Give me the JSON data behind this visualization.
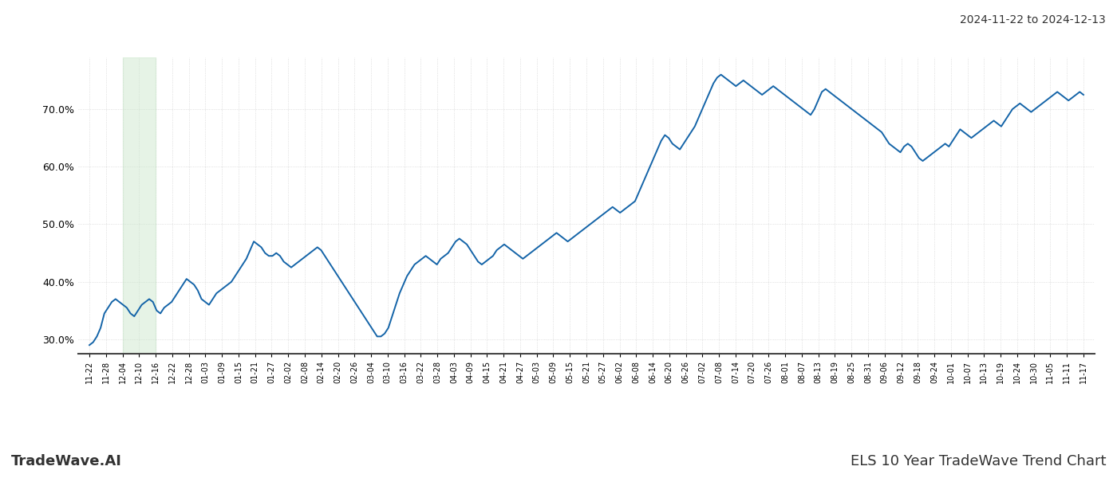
{
  "title_top_right": "2024-11-22 to 2024-12-13",
  "title_bottom_left": "TradeWave.AI",
  "title_bottom_right": "ELS 10 Year TradeWave Trend Chart",
  "line_color": "#1464a8",
  "line_width": 1.4,
  "highlight_color": "#c8e6c9",
  "highlight_alpha": 0.45,
  "background_color": "#ffffff",
  "grid_color": "#cccccc",
  "ylim": [
    27.5,
    79
  ],
  "yticks": [
    30.0,
    40.0,
    50.0,
    60.0,
    70.0
  ],
  "x_labels": [
    "11-22",
    "11-28",
    "12-04",
    "12-10",
    "12-16",
    "12-22",
    "12-28",
    "01-03",
    "01-09",
    "01-15",
    "01-21",
    "01-27",
    "02-02",
    "02-08",
    "02-14",
    "02-20",
    "02-26",
    "03-04",
    "03-10",
    "03-16",
    "03-22",
    "03-28",
    "04-03",
    "04-09",
    "04-15",
    "04-21",
    "04-27",
    "05-03",
    "05-09",
    "05-15",
    "05-21",
    "05-27",
    "06-02",
    "06-08",
    "06-14",
    "06-20",
    "06-26",
    "07-02",
    "07-08",
    "07-14",
    "07-20",
    "07-26",
    "08-01",
    "08-07",
    "08-13",
    "08-19",
    "08-25",
    "08-31",
    "09-06",
    "09-12",
    "09-18",
    "09-24",
    "10-01",
    "10-07",
    "10-13",
    "10-19",
    "10-24",
    "10-30",
    "11-05",
    "11-11",
    "11-17"
  ],
  "highlight_start_label": "12-04",
  "highlight_end_label": "12-16",
  "values": [
    29.0,
    29.5,
    30.5,
    32.0,
    34.5,
    35.5,
    36.5,
    37.0,
    36.5,
    36.0,
    35.5,
    34.5,
    34.0,
    35.0,
    36.0,
    36.5,
    37.0,
    36.5,
    35.0,
    34.5,
    35.5,
    36.0,
    36.5,
    37.5,
    38.5,
    39.5,
    40.5,
    40.0,
    39.5,
    38.5,
    37.0,
    36.5,
    36.0,
    37.0,
    38.0,
    38.5,
    39.0,
    39.5,
    40.0,
    41.0,
    42.0,
    43.0,
    44.0,
    45.5,
    47.0,
    46.5,
    46.0,
    45.0,
    44.5,
    44.5,
    45.0,
    44.5,
    43.5,
    43.0,
    42.5,
    43.0,
    43.5,
    44.0,
    44.5,
    45.0,
    45.5,
    46.0,
    45.5,
    44.5,
    43.5,
    42.5,
    41.5,
    40.5,
    39.5,
    38.5,
    37.5,
    36.5,
    35.5,
    34.5,
    33.5,
    32.5,
    31.5,
    30.5,
    30.5,
    31.0,
    32.0,
    34.0,
    36.0,
    38.0,
    39.5,
    41.0,
    42.0,
    43.0,
    43.5,
    44.0,
    44.5,
    44.0,
    43.5,
    43.0,
    44.0,
    44.5,
    45.0,
    46.0,
    47.0,
    47.5,
    47.0,
    46.5,
    45.5,
    44.5,
    43.5,
    43.0,
    43.5,
    44.0,
    44.5,
    45.5,
    46.0,
    46.5,
    46.0,
    45.5,
    45.0,
    44.5,
    44.0,
    44.5,
    45.0,
    45.5,
    46.0,
    46.5,
    47.0,
    47.5,
    48.0,
    48.5,
    48.0,
    47.5,
    47.0,
    47.5,
    48.0,
    48.5,
    49.0,
    49.5,
    50.0,
    50.5,
    51.0,
    51.5,
    52.0,
    52.5,
    53.0,
    52.5,
    52.0,
    52.5,
    53.0,
    53.5,
    54.0,
    55.5,
    57.0,
    58.5,
    60.0,
    61.5,
    63.0,
    64.5,
    65.5,
    65.0,
    64.0,
    63.5,
    63.0,
    64.0,
    65.0,
    66.0,
    67.0,
    68.5,
    70.0,
    71.5,
    73.0,
    74.5,
    75.5,
    76.0,
    75.5,
    75.0,
    74.5,
    74.0,
    74.5,
    75.0,
    74.5,
    74.0,
    73.5,
    73.0,
    72.5,
    73.0,
    73.5,
    74.0,
    73.5,
    73.0,
    72.5,
    72.0,
    71.5,
    71.0,
    70.5,
    70.0,
    69.5,
    69.0,
    70.0,
    71.5,
    73.0,
    73.5,
    73.0,
    72.5,
    72.0,
    71.5,
    71.0,
    70.5,
    70.0,
    69.5,
    69.0,
    68.5,
    68.0,
    67.5,
    67.0,
    66.5,
    66.0,
    65.0,
    64.0,
    63.5,
    63.0,
    62.5,
    63.5,
    64.0,
    63.5,
    62.5,
    61.5,
    61.0,
    61.5,
    62.0,
    62.5,
    63.0,
    63.5,
    64.0,
    63.5,
    64.5,
    65.5,
    66.5,
    66.0,
    65.5,
    65.0,
    65.5,
    66.0,
    66.5,
    67.0,
    67.5,
    68.0,
    67.5,
    67.0,
    68.0,
    69.0,
    70.0,
    70.5,
    71.0,
    70.5,
    70.0,
    69.5,
    70.0,
    70.5,
    71.0,
    71.5,
    72.0,
    72.5,
    73.0,
    72.5,
    72.0,
    71.5,
    72.0,
    72.5,
    73.0,
    72.5
  ]
}
